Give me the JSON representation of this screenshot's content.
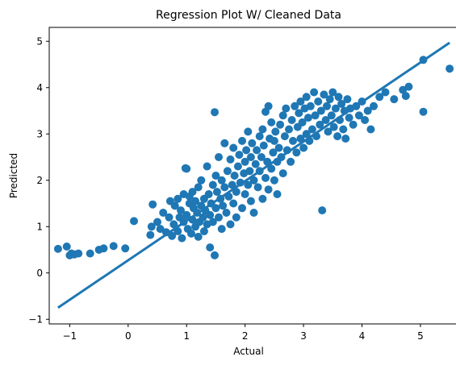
{
  "chart_data": {
    "type": "scatter",
    "title": "Regression Plot W/ Cleaned Data",
    "xlabel": "Actual",
    "ylabel": "Predicted",
    "xlim": [
      -1.35,
      5.65
    ],
    "ylim": [
      -1.1,
      5.3
    ],
    "xticks": [
      -1,
      0,
      1,
      2,
      3,
      4,
      5
    ],
    "yticks": [
      -1,
      0,
      1,
      2,
      3,
      4,
      5
    ],
    "grid": false,
    "color": "#1f77b4",
    "regression_line": {
      "x": [
        -1.2,
        5.5
      ],
      "y": [
        -0.75,
        4.97
      ]
    },
    "scatter_points": [
      [
        -1.2,
        0.52
      ],
      [
        -1.05,
        0.57
      ],
      [
        -1.0,
        0.38
      ],
      [
        -0.97,
        0.42
      ],
      [
        -0.92,
        0.4
      ],
      [
        -0.85,
        0.42
      ],
      [
        -0.65,
        0.42
      ],
      [
        -0.5,
        0.5
      ],
      [
        -0.42,
        0.53
      ],
      [
        -0.25,
        0.58
      ],
      [
        -0.05,
        0.53
      ],
      [
        0.1,
        1.12
      ],
      [
        0.38,
        0.82
      ],
      [
        0.4,
        1.0
      ],
      [
        0.42,
        1.48
      ],
      [
        0.5,
        1.1
      ],
      [
        0.55,
        0.95
      ],
      [
        0.6,
        1.3
      ],
      [
        0.65,
        0.88
      ],
      [
        0.7,
        1.2
      ],
      [
        0.72,
        1.55
      ],
      [
        0.75,
        0.8
      ],
      [
        0.78,
        1.05
      ],
      [
        0.8,
        1.45
      ],
      [
        0.85,
        0.9
      ],
      [
        0.85,
        1.6
      ],
      [
        0.88,
        1.2
      ],
      [
        0.9,
        1.35
      ],
      [
        0.92,
        0.75
      ],
      [
        0.95,
        1.1
      ],
      [
        0.95,
        1.7
      ],
      [
        0.98,
        2.26
      ],
      [
        1.0,
        2.25
      ],
      [
        1.0,
        1.25
      ],
      [
        1.02,
        0.95
      ],
      [
        1.05,
        1.5
      ],
      [
        1.05,
        1.65
      ],
      [
        1.08,
        0.85
      ],
      [
        1.1,
        1.15
      ],
      [
        1.1,
        1.75
      ],
      [
        1.12,
        1.4
      ],
      [
        1.15,
        1.0
      ],
      [
        1.15,
        1.55
      ],
      [
        1.18,
        1.3
      ],
      [
        1.2,
        0.78
      ],
      [
        1.2,
        1.85
      ],
      [
        1.22,
        1.1
      ],
      [
        1.25,
        1.45
      ],
      [
        1.25,
        2.0
      ],
      [
        1.28,
        1.2
      ],
      [
        1.3,
        0.9
      ],
      [
        1.3,
        1.6
      ],
      [
        1.32,
        1.35
      ],
      [
        1.35,
        2.3
      ],
      [
        1.35,
        1.05
      ],
      [
        1.38,
        1.7
      ],
      [
        1.4,
        1.25
      ],
      [
        1.4,
        0.55
      ],
      [
        1.42,
        1.5
      ],
      [
        1.45,
        1.9
      ],
      [
        1.45,
        1.1
      ],
      [
        1.48,
        0.38
      ],
      [
        1.48,
        3.47
      ],
      [
        1.5,
        1.4
      ],
      [
        1.5,
        2.1
      ],
      [
        1.52,
        1.75
      ],
      [
        1.55,
        1.2
      ],
      [
        1.55,
        2.5
      ],
      [
        1.58,
        1.6
      ],
      [
        1.6,
        0.95
      ],
      [
        1.6,
        2.0
      ],
      [
        1.62,
        1.45
      ],
      [
        1.65,
        1.85
      ],
      [
        1.65,
        2.8
      ],
      [
        1.68,
        1.3
      ],
      [
        1.7,
        2.2
      ],
      [
        1.72,
        1.65
      ],
      [
        1.75,
        1.05
      ],
      [
        1.75,
        2.45
      ],
      [
        1.78,
        1.9
      ],
      [
        1.8,
        1.5
      ],
      [
        1.8,
        2.7
      ],
      [
        1.82,
        2.1
      ],
      [
        1.85,
        1.75
      ],
      [
        1.85,
        1.2
      ],
      [
        1.88,
        2.3
      ],
      [
        1.9,
        2.55
      ],
      [
        1.92,
        1.95
      ],
      [
        1.95,
        1.4
      ],
      [
        1.95,
        2.85
      ],
      [
        1.98,
        2.15
      ],
      [
        2.0,
        1.7
      ],
      [
        2.0,
        2.4
      ],
      [
        2.02,
        2.65
      ],
      [
        2.05,
        1.9
      ],
      [
        2.05,
        3.05
      ],
      [
        2.08,
        2.2
      ],
      [
        2.1,
        1.55
      ],
      [
        2.1,
        2.5
      ],
      [
        2.12,
        2.8
      ],
      [
        2.15,
        2.0
      ],
      [
        2.15,
        1.3
      ],
      [
        2.18,
        2.35
      ],
      [
        2.2,
        2.65
      ],
      [
        2.22,
        1.85
      ],
      [
        2.25,
        2.95
      ],
      [
        2.25,
        2.2
      ],
      [
        2.28,
        2.5
      ],
      [
        2.3,
        1.6
      ],
      [
        2.3,
        3.1
      ],
      [
        2.32,
        2.75
      ],
      [
        2.35,
        2.05
      ],
      [
        2.35,
        3.48
      ],
      [
        2.38,
        2.4
      ],
      [
        2.4,
        3.6
      ],
      [
        2.4,
        1.8
      ],
      [
        2.42,
        2.9
      ],
      [
        2.45,
        2.25
      ],
      [
        2.45,
        3.25
      ],
      [
        2.48,
        2.6
      ],
      [
        2.5,
        2.0
      ],
      [
        2.5,
        2.85
      ],
      [
        2.52,
        3.05
      ],
      [
        2.55,
        2.4
      ],
      [
        2.55,
        1.7
      ],
      [
        2.58,
        2.7
      ],
      [
        2.6,
        3.2
      ],
      [
        2.62,
        2.5
      ],
      [
        2.65,
        3.4
      ],
      [
        2.65,
        2.15
      ],
      [
        2.68,
        2.95
      ],
      [
        2.7,
        3.55
      ],
      [
        2.72,
        2.65
      ],
      [
        2.75,
        3.1
      ],
      [
        2.78,
        2.4
      ],
      [
        2.8,
        3.3
      ],
      [
        2.82,
        2.85
      ],
      [
        2.85,
        3.6
      ],
      [
        2.88,
        2.6
      ],
      [
        2.9,
        3.15
      ],
      [
        2.92,
        3.45
      ],
      [
        2.95,
        2.9
      ],
      [
        2.95,
        3.7
      ],
      [
        2.98,
        3.25
      ],
      [
        3.0,
        2.7
      ],
      [
        3.02,
        3.55
      ],
      [
        3.05,
        3.0
      ],
      [
        3.05,
        3.8
      ],
      [
        3.08,
        3.35
      ],
      [
        3.1,
        2.85
      ],
      [
        3.12,
        3.6
      ],
      [
        3.15,
        3.1
      ],
      [
        3.18,
        3.9
      ],
      [
        3.2,
        3.4
      ],
      [
        3.22,
        2.95
      ],
      [
        3.25,
        3.7
      ],
      [
        3.28,
        3.2
      ],
      [
        3.3,
        3.5
      ],
      [
        3.32,
        1.35
      ],
      [
        3.35,
        3.85
      ],
      [
        3.38,
        3.3
      ],
      [
        3.4,
        3.6
      ],
      [
        3.42,
        3.05
      ],
      [
        3.45,
        3.75
      ],
      [
        3.48,
        3.4
      ],
      [
        3.5,
        3.9
      ],
      [
        3.52,
        3.15
      ],
      [
        3.55,
        3.55
      ],
      [
        3.58,
        2.95
      ],
      [
        3.6,
        3.8
      ],
      [
        3.62,
        3.3
      ],
      [
        3.65,
        3.65
      ],
      [
        3.68,
        3.1
      ],
      [
        3.7,
        3.5
      ],
      [
        3.72,
        2.9
      ],
      [
        3.75,
        3.75
      ],
      [
        3.78,
        3.35
      ],
      [
        3.8,
        3.55
      ],
      [
        3.85,
        3.2
      ],
      [
        3.9,
        3.6
      ],
      [
        3.95,
        3.4
      ],
      [
        4.0,
        3.7
      ],
      [
        4.05,
        3.3
      ],
      [
        4.1,
        3.5
      ],
      [
        4.15,
        3.1
      ],
      [
        4.2,
        3.6
      ],
      [
        4.3,
        3.8
      ],
      [
        4.4,
        3.9
      ],
      [
        4.55,
        3.75
      ],
      [
        4.7,
        3.95
      ],
      [
        4.75,
        3.82
      ],
      [
        4.8,
        4.02
      ],
      [
        5.05,
        3.48
      ],
      [
        5.05,
        4.6
      ],
      [
        5.5,
        4.41
      ]
    ]
  }
}
